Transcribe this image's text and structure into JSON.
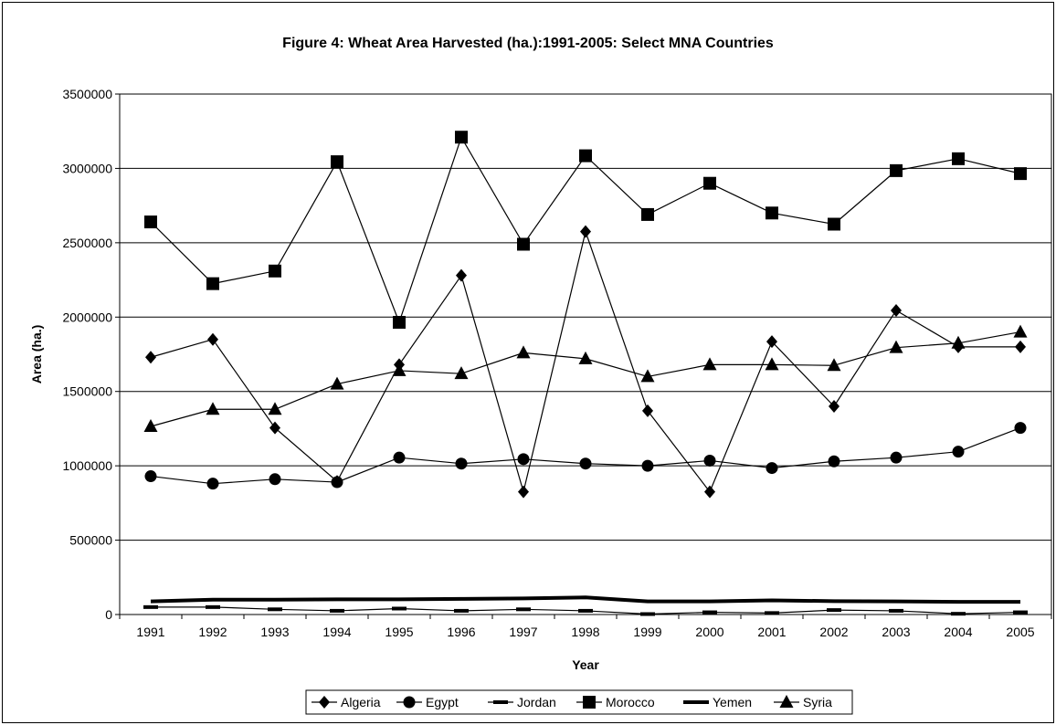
{
  "chart_data": {
    "type": "line",
    "title": "Figure 4: Wheat Area Harvested (ha.):1991-2005: Select MNA Countries",
    "xlabel": "Year",
    "ylabel": "Area (ha.)",
    "ylim": [
      0,
      3500000
    ],
    "yticks": [
      "0",
      "500000",
      "1000000",
      "1500000",
      "2000000",
      "2500000",
      "3000000",
      "3500000"
    ],
    "categories": [
      "1991",
      "1992",
      "1993",
      "1994",
      "1995",
      "1996",
      "1997",
      "1998",
      "1999",
      "2000",
      "2001",
      "2002",
      "2003",
      "2004",
      "2005"
    ],
    "grid": "horizontal",
    "legend_position": "bottom",
    "series": [
      {
        "name": "Algeria",
        "marker": "diamond",
        "values": [
          1730000,
          1850000,
          1255000,
          895000,
          1680000,
          2280000,
          825000,
          2575000,
          1370000,
          825000,
          1835000,
          1400000,
          2045000,
          1800000,
          1800000
        ]
      },
      {
        "name": "Egypt",
        "marker": "circle",
        "values": [
          930000,
          880000,
          910000,
          890000,
          1055000,
          1015000,
          1045000,
          1015000,
          1000000,
          1035000,
          985000,
          1030000,
          1055000,
          1095000,
          1255000
        ]
      },
      {
        "name": "Jordan",
        "marker": "dash",
        "values": [
          50000,
          50000,
          35000,
          25000,
          40000,
          25000,
          35000,
          25000,
          3000,
          15000,
          10000,
          30000,
          25000,
          5000,
          15000
        ]
      },
      {
        "name": "Morocco",
        "marker": "square",
        "values": [
          2640000,
          2225000,
          2310000,
          3045000,
          1965000,
          3210000,
          2490000,
          3085000,
          2690000,
          2900000,
          2700000,
          2625000,
          2985000,
          3065000,
          2965000
        ]
      },
      {
        "name": "Yemen",
        "marker": "thick-line",
        "values": [
          88000,
          100000,
          100000,
          102000,
          102000,
          105000,
          108000,
          115000,
          88000,
          88000,
          95000,
          90000,
          88000,
          85000,
          85000
        ]
      },
      {
        "name": "Syria",
        "marker": "triangle",
        "values": [
          1265000,
          1380000,
          1380000,
          1550000,
          1640000,
          1620000,
          1760000,
          1720000,
          1600000,
          1680000,
          1680000,
          1675000,
          1795000,
          1825000,
          1900000
        ]
      }
    ]
  }
}
